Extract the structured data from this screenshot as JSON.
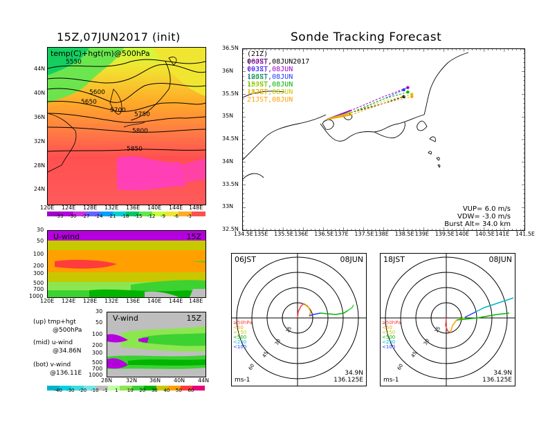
{
  "left_title": "15Z,07JUN2017 (init)",
  "right_title": "Sonde Tracking Forecast",
  "map500": {
    "label": "temp(C)+hgt(m)@500hPa",
    "lat_ticks": [
      "44N",
      "40N",
      "36N",
      "32N",
      "28N",
      "24N"
    ],
    "lon_ticks": [
      "120E",
      "124E",
      "128E",
      "132E",
      "136E",
      "140E",
      "144E",
      "148E"
    ],
    "contour_labels": [
      "5550",
      "5600",
      "5650",
      "5700",
      "5750",
      "5800",
      "5850"
    ],
    "colorbar_labels": [
      "-33",
      "-30",
      "-27",
      "-24",
      "-21",
      "-18",
      "-15",
      "-12",
      "-9",
      "-6",
      "-3"
    ],
    "colorbar_colors": [
      "#a000c8",
      "#b400dc",
      "#c832e6",
      "#6464ff",
      "#00a0ff",
      "#00d2d2",
      "#00c864",
      "#64e650",
      "#c8ff3c",
      "#f0e632",
      "#ffaa28",
      "#ff5050"
    ]
  },
  "uwind": {
    "label": "U-wind",
    "time": "15Z",
    "p_ticks": [
      "30",
      "50",
      "100",
      "200",
      "300",
      "500",
      "700",
      "1000"
    ],
    "x_ticks": [
      "120E",
      "124E",
      "128E",
      "132E",
      "136E",
      "140E",
      "144E",
      "148E"
    ]
  },
  "vwind": {
    "label": "V-wind",
    "time": "15Z",
    "p_ticks": [
      "30",
      "50",
      "100",
      "200",
      "300",
      "500",
      "700",
      "1000"
    ],
    "x_ticks": [
      "28N",
      "32N",
      "36N",
      "40N",
      "44N"
    ]
  },
  "legend_notes": [
    {
      "a": "(up) tmp+hgt",
      "b": "@500hPa"
    },
    {
      "a": "(mid) u-wind",
      "b": "@34.86N"
    },
    {
      "a": "(bot) v-wind",
      "b": "@136.11E"
    }
  ],
  "wind_colorbar": {
    "labels": [
      "-40",
      "-30",
      "-20",
      "-10",
      "-1",
      "1",
      "10",
      "20",
      "30",
      "40",
      "50",
      "60"
    ],
    "colors": [
      "#00b4c8",
      "#00d2e6",
      "#3cdcdc",
      "#78e6e6",
      "#bebebe",
      "#beffa0",
      "#8ce650",
      "#3cd232",
      "#00b400",
      "#c8c800",
      "#ffa000",
      "#ff3c3c",
      "#e6007a"
    ]
  },
  "track_map": {
    "lat_ticks": [
      "36.5N",
      "36N",
      "35.5N",
      "35N",
      "34.5N",
      "34N",
      "33.5N",
      "33N",
      "32.5N"
    ],
    "lon_ticks": [
      "134.5E",
      "135E",
      "135.5E",
      "136E",
      "136.5E",
      "137E",
      "137.5E",
      "138E",
      "138.5E",
      "139E",
      "139.5E",
      "140E",
      "140.5E",
      "141E",
      "141.5E"
    ],
    "launches": [
      {
        "text": "(21Z)  06JST,08JUN2017",
        "color": "#000000"
      },
      {
        "text": "(00Z)  09JST,08JUN",
        "color": "#a000c8"
      },
      {
        "text": "(03Z)  12JST,08JUN",
        "color": "#1e3cff"
      },
      {
        "text": "(06Z)  15JST,08JUN",
        "color": "#00b400"
      },
      {
        "text": "(09Z)  18JST,08JUN",
        "color": "#c8c800"
      },
      {
        "text": "(12Z)  21JST,08JUN",
        "color": "#ffa000"
      }
    ],
    "vup": "VUP=  6.0  m/s",
    "vdw": "VDW= -3.0  m/s",
    "burst": "Burst Alt= 34.0  km"
  },
  "hodo1": {
    "time": "06JST",
    "date": "08JUN",
    "rings": [
      "15",
      "30",
      "45",
      "60"
    ],
    "pressure_legend": [
      "≥50hPa",
      "<50",
      "<150",
      "<500",
      "<250",
      "<100"
    ],
    "unit": "ms-1",
    "lat": "34.9N",
    "lon": "136.125E"
  },
  "hodo2": {
    "time": "18JST",
    "date": "08JUN",
    "rings": [
      "15",
      "30",
      "45",
      "60"
    ],
    "pressure_legend": [
      "≥50hPa",
      "<50",
      "<150",
      "<500",
      "<250",
      "<100"
    ],
    "unit": "ms-1",
    "lat": "34.9N",
    "lon": "136.125E"
  },
  "pressure_legend_colors": [
    "#ff3c3c",
    "#ffa000",
    "#c8c800",
    "#00b400",
    "#00b4c8",
    "#1e3cff"
  ],
  "chart_data": [
    {
      "type": "heatmap",
      "title": "temp(C)+hgt(m)@500hPa",
      "xlabel": "",
      "ylabel": "",
      "xlim": [
        120,
        150
      ],
      "ylim": [
        22,
        48
      ],
      "contours_m": [
        5550,
        5600,
        5650,
        5700,
        5750,
        5800,
        5850
      ]
    },
    {
      "type": "heatmap",
      "title": "U-wind",
      "ylim": [
        1000,
        30
      ]
    },
    {
      "type": "heatmap",
      "title": "V-wind",
      "ylim": [
        1000,
        30
      ]
    },
    {
      "type": "line",
      "title": "Sonde Tracking Forecast",
      "series": [
        {
          "name": "(21Z)  06JST,08JUN2017",
          "x": [
            136.6,
            137.2,
            138.0,
            138.5
          ],
          "y": [
            34.95,
            35.1,
            35.3,
            35.45
          ]
        },
        {
          "name": "(00Z)  09JST,08JUN",
          "x": [
            136.6,
            137.2,
            138.0,
            138.6
          ],
          "y": [
            34.95,
            35.15,
            35.45,
            35.65
          ]
        },
        {
          "name": "(03Z)  12JST,08JUN",
          "x": [
            136.6,
            137.2,
            138.0,
            138.5
          ],
          "y": [
            34.95,
            35.1,
            35.4,
            35.6
          ]
        },
        {
          "name": "(06Z)  15JST,08JUN",
          "x": [
            136.6,
            137.2,
            138.0,
            138.6
          ],
          "y": [
            34.95,
            35.1,
            35.4,
            35.55
          ]
        },
        {
          "name": "(09Z)  18JST,08JUN",
          "x": [
            136.6,
            137.2,
            138.0,
            138.7
          ],
          "y": [
            34.95,
            35.1,
            35.35,
            35.5
          ]
        },
        {
          "name": "(12Z)  21JST,08JUN",
          "x": [
            136.6,
            137.2,
            138.0,
            138.7
          ],
          "y": [
            34.95,
            35.05,
            35.3,
            35.45
          ]
        }
      ],
      "xlim": [
        134.5,
        141.5
      ],
      "ylim": [
        32.5,
        36.5
      ]
    }
  ]
}
